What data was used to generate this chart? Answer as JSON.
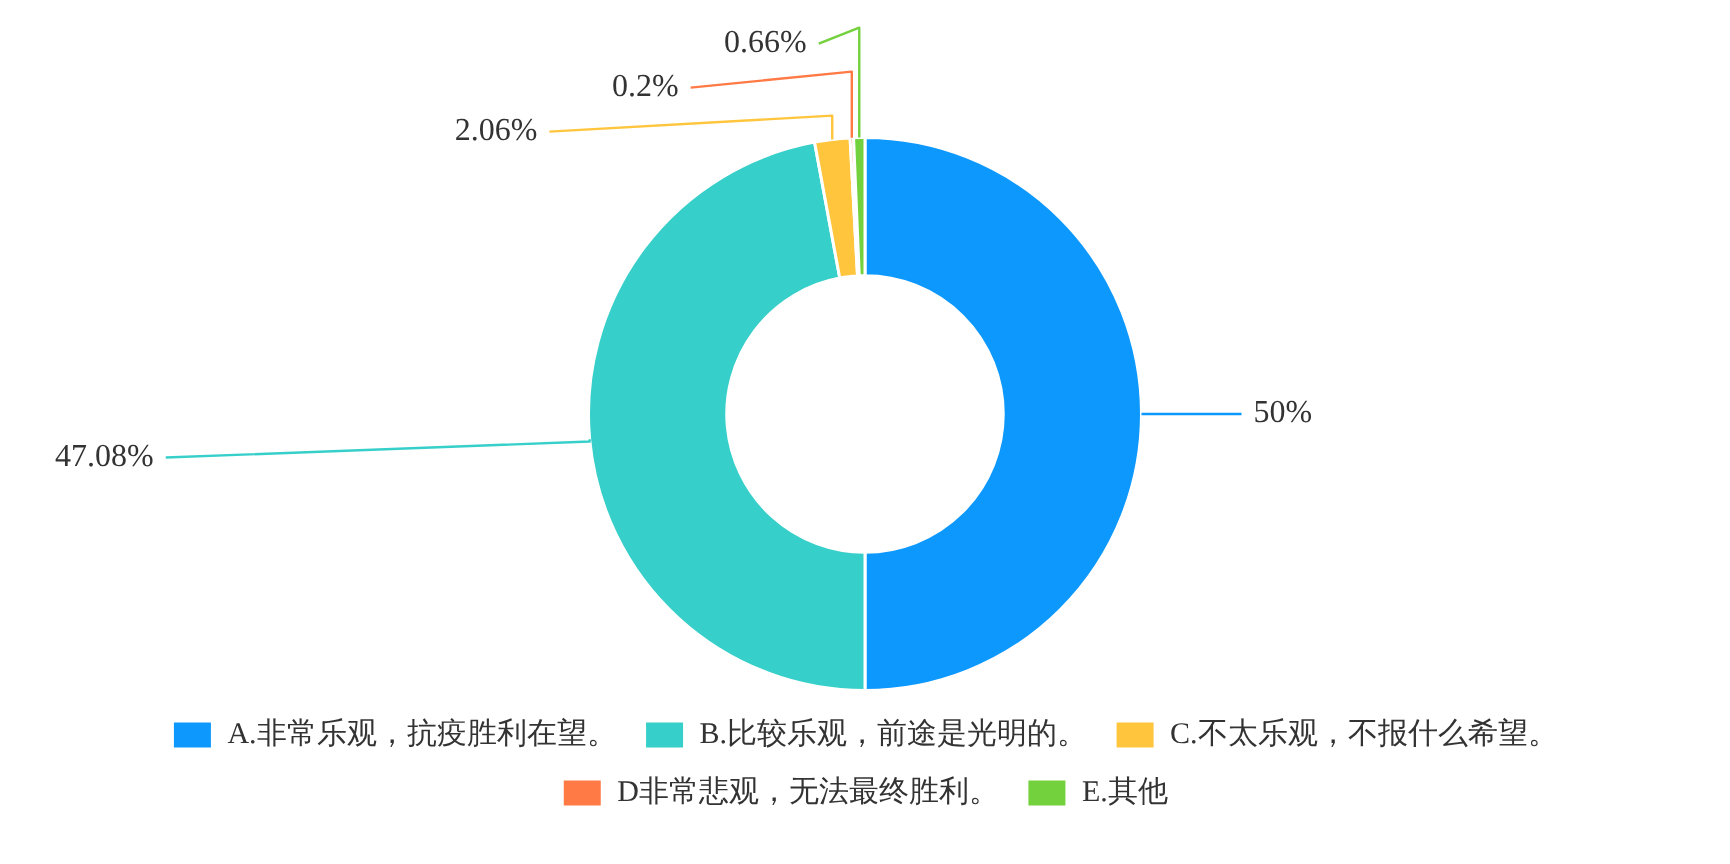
{
  "chart_data": {
    "type": "donut",
    "categories": [
      "A.非常乐观，抗疫胜利在望。",
      "B.比较乐观，前途是光明的。",
      "C.不太乐观，不报什么希望。",
      "D非常悲观，无法最终胜利。",
      "E.其他"
    ],
    "values": [
      50,
      47.08,
      2.06,
      0.2,
      0.66
    ],
    "value_labels": [
      "50%",
      "47.08%",
      "2.06%",
      "0.2%",
      "0.66%"
    ],
    "colors": [
      "#0d98fd",
      "#36cfc9",
      "#ffc53d",
      "#ff7a45",
      "#73d13d"
    ],
    "legend": "bottom"
  }
}
